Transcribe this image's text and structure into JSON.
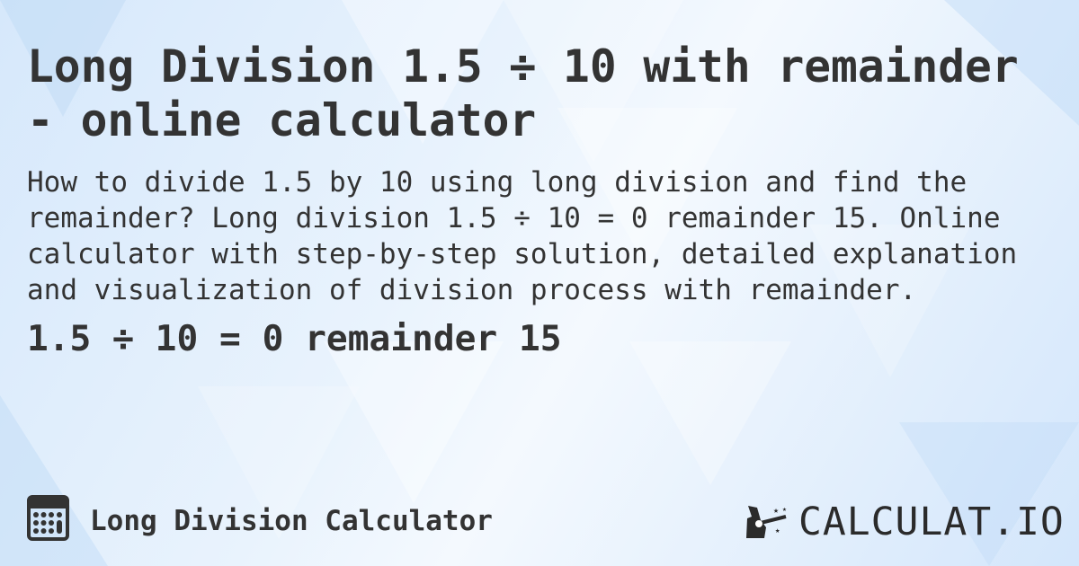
{
  "title": "Long Division 1.5 ÷ 10 with remainder - online calculator",
  "description": "How to divide 1.5 by 10 using long division and find the remainder? Long division 1.5 ÷ 10 = 0 remainder 15. Online calculator with step-by-step solution, detailed explanation and visualization of division process with remainder.",
  "result": "1.5 ÷ 10 = 0 remainder 15",
  "footer": {
    "label": "Long Division Calculator",
    "icon": "calculator-icon"
  },
  "logo": {
    "text": "CALCULAT.IO",
    "icon": "magic-hand-wand-icon"
  },
  "colors": {
    "text": "#333333",
    "background": "#dcebfb"
  }
}
